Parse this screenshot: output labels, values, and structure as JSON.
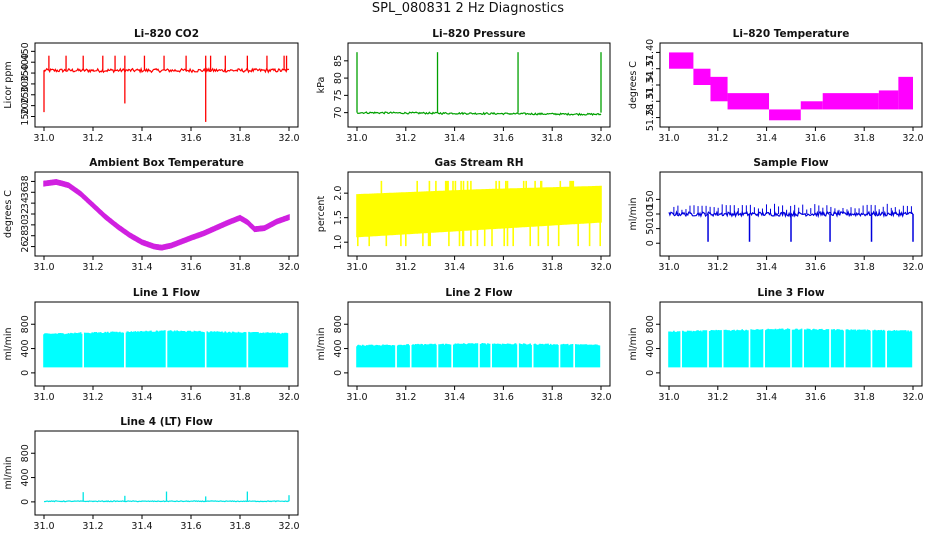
{
  "figure": {
    "title": "SPL_080831  2 Hz Diagnostics",
    "xrange": [
      31.0,
      32.0
    ],
    "xticks": [
      "31.0",
      "31.2",
      "31.4",
      "31.6",
      "31.8",
      "32.0"
    ],
    "frame_color": "#000000"
  },
  "chart_data": [
    {
      "id": "co2",
      "type": "line",
      "title": "Li–820 CO2",
      "ylabel": "Licor ppm",
      "color": "#ff0000",
      "ylim": [
        120,
        470
      ],
      "yticks": [
        "150",
        "200",
        "250",
        "300",
        "350",
        "400",
        "450"
      ],
      "baseline": 362,
      "noise": 8,
      "spikes_up": [
        31.02,
        31.09,
        31.16,
        31.24,
        31.29,
        31.33,
        31.41,
        31.49,
        31.58,
        31.66,
        31.68,
        31.74,
        31.83,
        31.91,
        31.98,
        31.99
      ],
      "spikes_up_top": 430,
      "spikes_down": [
        [
          31.0,
          170
        ],
        [
          31.33,
          210
        ],
        [
          31.66,
          125
        ]
      ]
    },
    {
      "id": "pressure",
      "type": "line",
      "title": "Li–820 Pressure",
      "ylabel": "kPa",
      "color": "#00a000",
      "ylim": [
        67,
        89
      ],
      "yticks": [
        "70",
        "75",
        "80",
        "85"
      ],
      "baseline": 70.0,
      "drift_to": 69.5,
      "noise": 0.25,
      "spikes_up": [
        31.0,
        31.33,
        31.66,
        32.0
      ],
      "spikes_up_top": 87.5
    },
    {
      "id": "licor-temp",
      "type": "step-band",
      "title": "Li–820 Temperature",
      "ylabel": "degrees C",
      "color": "#ff00ff",
      "ylim": [
        51.27,
        51.41
      ],
      "yticks": [
        "51.28",
        "51.31",
        "51.34",
        "51.37",
        "51.40"
      ],
      "steps": [
        {
          "x0": 31.0,
          "x1": 31.1,
          "lo": 51.37,
          "hi": 51.4
        },
        {
          "x0": 31.1,
          "x1": 31.17,
          "lo": 51.34,
          "hi": 51.37
        },
        {
          "x0": 31.17,
          "x1": 31.24,
          "lo": 51.31,
          "hi": 51.355
        },
        {
          "x0": 31.24,
          "x1": 31.41,
          "lo": 51.295,
          "hi": 51.325
        },
        {
          "x0": 31.41,
          "x1": 31.54,
          "lo": 51.275,
          "hi": 51.295
        },
        {
          "x0": 31.54,
          "x1": 31.63,
          "lo": 51.295,
          "hi": 51.31
        },
        {
          "x0": 31.63,
          "x1": 31.86,
          "lo": 51.295,
          "hi": 51.325
        },
        {
          "x0": 31.86,
          "x1": 31.94,
          "lo": 51.295,
          "hi": 51.33
        },
        {
          "x0": 31.94,
          "x1": 32.0,
          "lo": 51.295,
          "hi": 51.355
        }
      ]
    },
    {
      "id": "ambient-temp",
      "type": "line",
      "title": "Ambient Box Temperature",
      "ylabel": "degrees C",
      "color": "#d020e0",
      "ylim": [
        25,
        39
      ],
      "yticks": [
        "26",
        "28",
        "30",
        "32",
        "34",
        "36",
        "38"
      ],
      "x": [
        31.0,
        31.05,
        31.1,
        31.15,
        31.2,
        31.25,
        31.3,
        31.35,
        31.4,
        31.45,
        31.48,
        31.52,
        31.56,
        31.6,
        31.65,
        31.7,
        31.75,
        31.8,
        31.83,
        31.86,
        31.9,
        31.95,
        32.0
      ],
      "values": [
        37.6,
        37.9,
        37.3,
        35.7,
        33.6,
        31.5,
        29.7,
        28.1,
        26.8,
        26.0,
        25.8,
        26.2,
        26.9,
        27.6,
        28.4,
        29.4,
        30.4,
        31.3,
        30.5,
        29.2,
        29.4,
        30.6,
        31.4
      ],
      "noise": 0.4
    },
    {
      "id": "rh",
      "type": "band",
      "title": "Gas Stream RH",
      "ylabel": "percent",
      "color": "#ffff00",
      "ylim": [
        0.8,
        2.35
      ],
      "yticks": [
        "1.0",
        "1.5",
        "2.0"
      ],
      "upper": [
        [
          31.0,
          1.98
        ],
        [
          31.5,
          2.08
        ],
        [
          32.0,
          2.15
        ]
      ],
      "lower": [
        [
          31.0,
          1.1
        ],
        [
          31.5,
          1.25
        ],
        [
          32.0,
          1.4
        ]
      ],
      "upper_spikes": 2.25,
      "lower_spikes": 0.92
    },
    {
      "id": "sample-flow",
      "type": "line",
      "title": "Sample Flow",
      "ylabel": "ml/min",
      "color": "#0000dd",
      "ylim": [
        -30,
        230
      ],
      "yticks": [
        "0",
        "50",
        "100",
        "150"
      ],
      "baseline": 100,
      "noise": 7,
      "spikes_up_top": 135,
      "dips": [
        31.16,
        31.33,
        31.5,
        31.66,
        31.83,
        32.0
      ],
      "dip_value": 5
    },
    {
      "id": "line1",
      "type": "band",
      "title": "Line 1 Flow",
      "ylabel": "ml/min",
      "color": "#00ffff",
      "ylim": [
        -150,
        1100
      ],
      "yticks": [
        "0",
        "400",
        "800"
      ],
      "upper": [
        [
          31.0,
          640
        ],
        [
          31.5,
          690
        ],
        [
          32.0,
          650
        ]
      ],
      "lower": [
        [
          31.0,
          90
        ],
        [
          32.0,
          90
        ]
      ],
      "gaps": [
        31.16,
        31.33,
        31.5,
        31.66,
        31.83,
        32.0
      ]
    },
    {
      "id": "line2",
      "type": "band",
      "title": "Line 2 Flow",
      "ylabel": "ml/min",
      "color": "#00ffff",
      "ylim": [
        -150,
        1100
      ],
      "yticks": [
        "0",
        "400",
        "800"
      ],
      "upper": [
        [
          31.0,
          450
        ],
        [
          31.5,
          480
        ],
        [
          32.0,
          460
        ]
      ],
      "lower": [
        [
          31.0,
          90
        ],
        [
          32.0,
          90
        ]
      ],
      "gaps": [
        31.16,
        31.22,
        31.33,
        31.39,
        31.5,
        31.55,
        31.66,
        31.72,
        31.83,
        31.89,
        32.0
      ]
    },
    {
      "id": "line3",
      "type": "band",
      "title": "Line 3 Flow",
      "ylabel": "ml/min",
      "color": "#00ffff",
      "ylim": [
        -150,
        1100
      ],
      "yticks": [
        "0",
        "400",
        "800"
      ],
      "upper": [
        [
          31.0,
          680
        ],
        [
          31.5,
          720
        ],
        [
          32.0,
          690
        ]
      ],
      "lower": [
        [
          31.0,
          90
        ],
        [
          32.0,
          90
        ]
      ],
      "gaps": [
        31.05,
        31.16,
        31.22,
        31.33,
        31.39,
        31.5,
        31.55,
        31.66,
        31.72,
        31.83,
        31.89,
        32.0
      ]
    },
    {
      "id": "line4",
      "type": "line",
      "title": "Line 4 (LT) Flow",
      "ylabel": "ml/min",
      "color": "#00e5e5",
      "ylim": [
        -150,
        1100
      ],
      "yticks": [
        "0",
        "400",
        "800"
      ],
      "baseline": 10,
      "noise": 6,
      "spikes": [
        [
          31.16,
          160
        ],
        [
          31.33,
          100
        ],
        [
          31.5,
          170
        ],
        [
          31.66,
          90
        ],
        [
          31.83,
          170
        ],
        [
          32.0,
          110
        ]
      ]
    }
  ]
}
